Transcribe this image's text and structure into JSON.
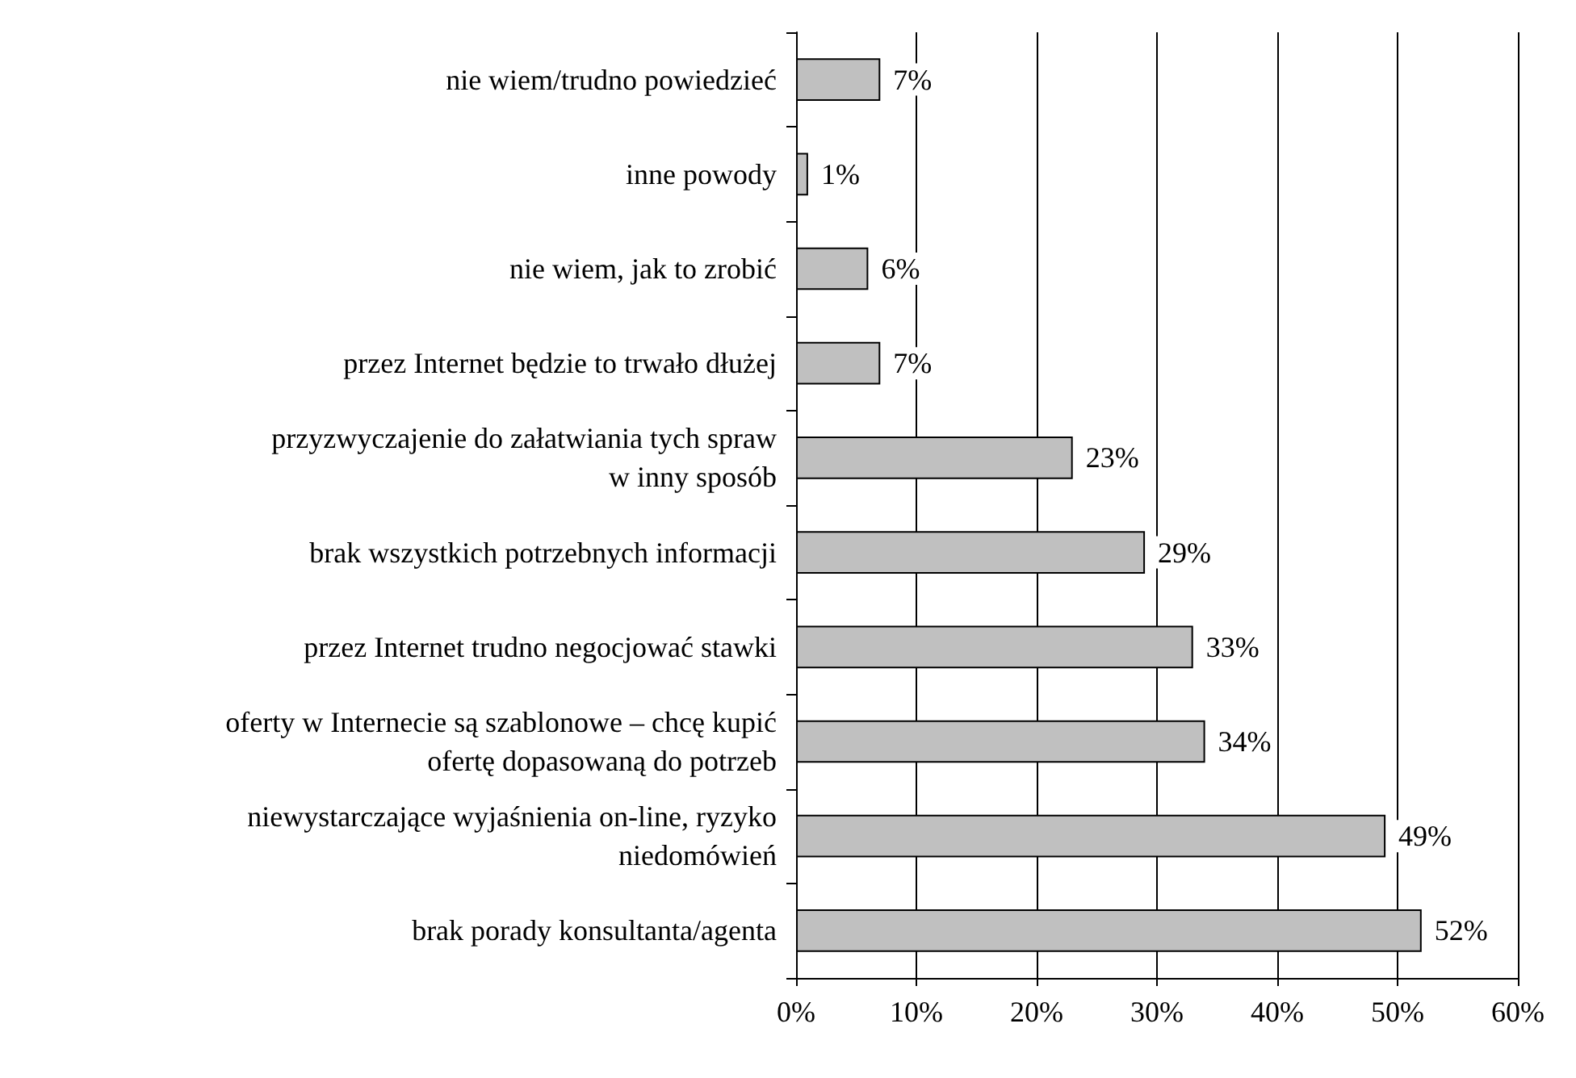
{
  "chart_data": {
    "type": "bar",
    "orientation": "horizontal",
    "categories": [
      "nie wiem/trudno powiedzieć",
      "inne powody",
      "nie wiem, jak to zrobić",
      "przez Internet będzie to trwało dłużej",
      "przyzwyczajenie do załatwiania tych spraw\nw inny sposób",
      "brak wszystkich potrzebnych informacji",
      "przez Internet trudno negocjować stawki",
      "oferty w Internecie są szablonowe – chcę kupić\nofertę dopasowaną do potrzeb",
      "niewystarczające wyjaśnienia on-line, ryzyko\nniedomówień",
      "brak porady konsultanta/agenta"
    ],
    "values": [
      7,
      1,
      6,
      7,
      23,
      29,
      33,
      34,
      49,
      52
    ],
    "value_labels": [
      "7%",
      "1%",
      "6%",
      "7%",
      "23%",
      "29%",
      "33%",
      "34%",
      "49%",
      "52%"
    ],
    "color": "#c0c0c0",
    "xlim": [
      0,
      60
    ],
    "xticks": [
      {
        "value": 0,
        "label": "0%"
      },
      {
        "value": 10,
        "label": "10%"
      },
      {
        "value": 20,
        "label": "20%"
      },
      {
        "value": 30,
        "label": "30%"
      },
      {
        "value": 40,
        "label": "40%"
      },
      {
        "value": 50,
        "label": "50%"
      },
      {
        "value": 60,
        "label": "60%"
      }
    ],
    "grid": "x"
  }
}
